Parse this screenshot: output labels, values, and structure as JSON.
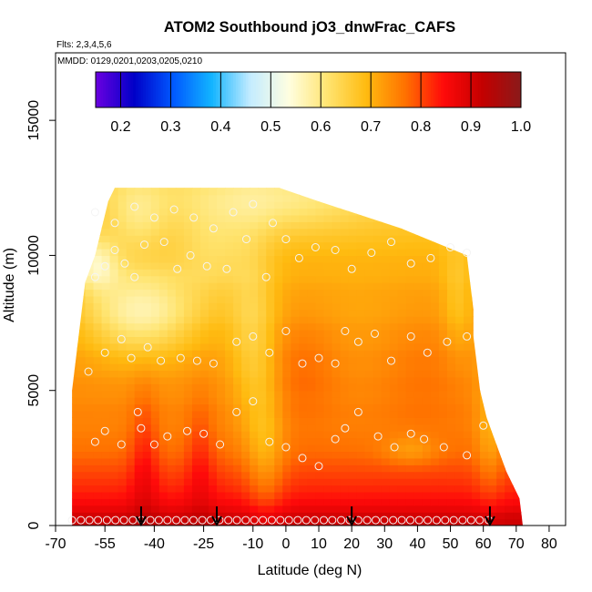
{
  "chart_data": {
    "type": "heatmap",
    "title": "ATOM2 Southbound jO3_dnwFrac_CAFS",
    "annotations": [
      "Flts: 2,3,4,5,6",
      "MMDD: 0129,0201,0203,0205,0210"
    ],
    "xlabel": "Latitude (deg N)",
    "ylabel": "Altitude (m)",
    "xlim": [
      -70,
      85
    ],
    "ylim": [
      0,
      17500
    ],
    "x_ticks": [
      -70,
      -55,
      -40,
      -25,
      -10,
      0,
      10,
      20,
      30,
      40,
      50,
      60,
      70,
      80
    ],
    "x_tick_labels": [
      "-70",
      "-55",
      "-40",
      "-25",
      "-10",
      "0",
      "10",
      "20",
      "30",
      "40",
      "50",
      "60",
      "70",
      "80"
    ],
    "y_ticks": [
      0,
      5000,
      10000,
      15000
    ],
    "y_tick_labels": [
      "0",
      "5000",
      "10000",
      "15000"
    ],
    "colorbar": {
      "range": [
        0.15,
        1.0
      ],
      "ticks": [
        0.2,
        0.3,
        0.4,
        0.5,
        0.6,
        0.7,
        0.8,
        0.9,
        1.0
      ],
      "tick_labels": [
        "0.2",
        "0.3",
        "0.4",
        "0.5",
        "0.6",
        "0.7",
        "0.8",
        "0.9",
        "1.0"
      ],
      "colors": [
        "#6a00e0",
        "#0000c8",
        "#0058ff",
        "#12b4ff",
        "#c4ecff",
        "#fffee0",
        "#ffe470",
        "#ffbb10",
        "#ff7200",
        "#ff0a0a",
        "#c40000",
        "#8a1a1a"
      ]
    },
    "arrow_latitudes": [
      -44,
      -21,
      20,
      62
    ],
    "altitude_bands": [
      {
        "z": 125,
        "v": 0.91
      },
      {
        "z": 375,
        "v": 0.9
      },
      {
        "z": 750,
        "v": 0.86
      },
      {
        "z": 1250,
        "v": 0.83
      },
      {
        "z": 1750,
        "v": 0.81
      },
      {
        "z": 2250,
        "v": 0.79
      },
      {
        "z": 2750,
        "v": 0.77
      },
      {
        "z": 3250,
        "v": 0.76
      },
      {
        "z": 3750,
        "v": 0.75
      },
      {
        "z": 4250,
        "v": 0.75
      },
      {
        "z": 4750,
        "v": 0.74
      },
      {
        "z": 5250,
        "v": 0.74
      },
      {
        "z": 5750,
        "v": 0.73
      },
      {
        "z": 6250,
        "v": 0.73
      },
      {
        "z": 6750,
        "v": 0.72
      },
      {
        "z": 7250,
        "v": 0.72
      },
      {
        "z": 7750,
        "v": 0.71
      },
      {
        "z": 8250,
        "v": 0.71
      },
      {
        "z": 8750,
        "v": 0.71
      },
      {
        "z": 9250,
        "v": 0.7
      },
      {
        "z": 9750,
        "v": 0.7
      },
      {
        "z": 10250,
        "v": 0.69
      },
      {
        "z": 10750,
        "v": 0.68
      },
      {
        "z": 11250,
        "v": 0.67
      },
      {
        "z": 11750,
        "v": 0.66
      },
      {
        "z": 12250,
        "v": 0.65
      }
    ],
    "data_extent": [
      {
        "z": 0,
        "lat_min": -65,
        "lat_max": 72
      },
      {
        "z": 1000,
        "lat_min": -65,
        "lat_max": 71
      },
      {
        "z": 2000,
        "lat_min": -65,
        "lat_max": 67
      },
      {
        "z": 3000,
        "lat_min": -65,
        "lat_max": 64
      },
      {
        "z": 4000,
        "lat_min": -65,
        "lat_max": 61
      },
      {
        "z": 5000,
        "lat_min": -65,
        "lat_max": 59
      },
      {
        "z": 6000,
        "lat_min": -64,
        "lat_max": 58
      },
      {
        "z": 7000,
        "lat_min": -63,
        "lat_max": 57
      },
      {
        "z": 8000,
        "lat_min": -62,
        "lat_max": 57
      },
      {
        "z": 9000,
        "lat_min": -61,
        "lat_max": 56
      },
      {
        "z": 10000,
        "lat_min": -58,
        "lat_max": 55
      },
      {
        "z": 11000,
        "lat_min": -56,
        "lat_max": 35
      },
      {
        "z": 12000,
        "lat_min": -54,
        "lat_max": 10
      },
      {
        "z": 12500,
        "lat_min": -52,
        "lat_max": -2
      }
    ],
    "features": [
      {
        "lat": -44,
        "z": 8000,
        "sig_lat": 12,
        "sig_z": 1200,
        "dv": -0.14
      },
      {
        "lat": -58,
        "z": 9700,
        "sig_lat": 5,
        "sig_z": 700,
        "dv": -0.12
      },
      {
        "lat": -45,
        "z": 11500,
        "sig_lat": 6,
        "sig_z": 900,
        "dv": -0.06
      },
      {
        "lat": -22,
        "z": 10000,
        "sig_lat": 8,
        "sig_z": 1200,
        "dv": -0.06
      },
      {
        "lat": -10,
        "z": 7000,
        "sig_lat": 5,
        "sig_z": 2500,
        "dv": -0.07
      },
      {
        "lat": -5,
        "z": 12000,
        "sig_lat": 20,
        "sig_z": 800,
        "dv": -0.06
      },
      {
        "lat": -6,
        "z": 2500,
        "sig_lat": 4,
        "sig_z": 2000,
        "dv": -0.06
      },
      {
        "lat": -43,
        "z": 2500,
        "sig_lat": 3,
        "sig_z": 1800,
        "dv": 0.06
      },
      {
        "lat": -26,
        "z": 2500,
        "sig_lat": 3,
        "sig_z": 1600,
        "dv": 0.05
      },
      {
        "lat": 5,
        "z": 6000,
        "sig_lat": 8,
        "sig_z": 1500,
        "dv": 0.04
      },
      {
        "lat": 42,
        "z": 6000,
        "sig_lat": 10,
        "sig_z": 1800,
        "dv": 0.03
      },
      {
        "lat": 38,
        "z": 2800,
        "sig_lat": 6,
        "sig_z": 400,
        "dv": -0.05
      },
      {
        "lat": 62,
        "z": 3500,
        "sig_lat": 3,
        "sig_z": 2000,
        "dv": -0.05
      },
      {
        "lat": 52,
        "z": 8500,
        "sig_lat": 3,
        "sig_z": 1500,
        "dv": -0.04
      }
    ],
    "obs_points": [
      [
        -65.0,
        200
      ],
      [
        -62.3,
        200
      ],
      [
        -59.7,
        200
      ],
      [
        -57.1,
        200
      ],
      [
        -54.4,
        200
      ],
      [
        -51.8,
        200
      ],
      [
        -49.2,
        200
      ],
      [
        -46.5,
        200
      ],
      [
        -43.9,
        200
      ],
      [
        -41.2,
        200
      ],
      [
        -38.6,
        200
      ],
      [
        -36.0,
        200
      ],
      [
        -33.3,
        200
      ],
      [
        -30.7,
        200
      ],
      [
        -28.1,
        200
      ],
      [
        -25.4,
        200
      ],
      [
        -22.8,
        200
      ],
      [
        -20.2,
        200
      ],
      [
        -17.5,
        200
      ],
      [
        -14.9,
        200
      ],
      [
        -12.2,
        200
      ],
      [
        -9.6,
        200
      ],
      [
        -7.0,
        200
      ],
      [
        -4.3,
        200
      ],
      [
        -1.7,
        200
      ],
      [
        0.9,
        200
      ],
      [
        3.6,
        200
      ],
      [
        6.2,
        200
      ],
      [
        8.8,
        200
      ],
      [
        11.5,
        200
      ],
      [
        14.1,
        200
      ],
      [
        16.8,
        200
      ],
      [
        19.4,
        200
      ],
      [
        22.0,
        200
      ],
      [
        24.7,
        200
      ],
      [
        27.3,
        200
      ],
      [
        29.9,
        200
      ],
      [
        32.6,
        200
      ],
      [
        35.2,
        200
      ],
      [
        37.8,
        200
      ],
      [
        40.5,
        200
      ],
      [
        43.1,
        200
      ],
      [
        45.8,
        200
      ],
      [
        48.4,
        200
      ],
      [
        51.0,
        200
      ],
      [
        53.7,
        200
      ],
      [
        56.3,
        200
      ],
      [
        58.9,
        200
      ],
      [
        61.6,
        200
      ],
      [
        -58,
        3100
      ],
      [
        -55,
        3500
      ],
      [
        -50,
        3000
      ],
      [
        -45,
        4200
      ],
      [
        -44,
        3600
      ],
      [
        -40,
        3000
      ],
      [
        -36,
        3300
      ],
      [
        -30,
        3500
      ],
      [
        -25,
        3400
      ],
      [
        -20,
        3000
      ],
      [
        -15,
        4200
      ],
      [
        -10,
        4600
      ],
      [
        -5,
        3100
      ],
      [
        0,
        2900
      ],
      [
        5,
        2500
      ],
      [
        10,
        2200
      ],
      [
        15,
        3200
      ],
      [
        18,
        3600
      ],
      [
        22,
        4200
      ],
      [
        28,
        3300
      ],
      [
        33,
        2900
      ],
      [
        38,
        3400
      ],
      [
        42,
        3200
      ],
      [
        48,
        2900
      ],
      [
        55,
        2600
      ],
      [
        60,
        3700
      ],
      [
        -60,
        5700
      ],
      [
        -55,
        6400
      ],
      [
        -50,
        6900
      ],
      [
        -47,
        6200
      ],
      [
        -42,
        6600
      ],
      [
        -38,
        6100
      ],
      [
        -32,
        6200
      ],
      [
        -27,
        6100
      ],
      [
        -22,
        6000
      ],
      [
        -15,
        6800
      ],
      [
        -10,
        7000
      ],
      [
        -5,
        6400
      ],
      [
        0,
        7200
      ],
      [
        5,
        6000
      ],
      [
        10,
        6200
      ],
      [
        15,
        6000
      ],
      [
        18,
        7200
      ],
      [
        22,
        6800
      ],
      [
        27,
        7100
      ],
      [
        32,
        6100
      ],
      [
        38,
        7000
      ],
      [
        43,
        6400
      ],
      [
        49,
        6800
      ],
      [
        55,
        7000
      ],
      [
        -58,
        9200
      ],
      [
        -55,
        9600
      ],
      [
        -52,
        10200
      ],
      [
        -49,
        9700
      ],
      [
        -46,
        9200
      ],
      [
        -43,
        10400
      ],
      [
        -37,
        10500
      ],
      [
        -33,
        9500
      ],
      [
        -29,
        10000
      ],
      [
        -24,
        9600
      ],
      [
        -18,
        9500
      ],
      [
        -12,
        10600
      ],
      [
        -6,
        9200
      ],
      [
        0,
        10600
      ],
      [
        4,
        9900
      ],
      [
        9,
        10300
      ],
      [
        15,
        10200
      ],
      [
        20,
        9500
      ],
      [
        26,
        10100
      ],
      [
        32,
        10500
      ],
      [
        38,
        9700
      ],
      [
        44,
        9900
      ],
      [
        50,
        10300
      ],
      [
        55,
        10100
      ],
      [
        -58,
        11600
      ],
      [
        -52,
        11200
      ],
      [
        -46,
        11800
      ],
      [
        -40,
        11400
      ],
      [
        -34,
        11700
      ],
      [
        -28,
        11400
      ],
      [
        -22,
        11000
      ],
      [
        -16,
        11600
      ],
      [
        -10,
        11900
      ],
      [
        -4,
        11200
      ]
    ]
  }
}
